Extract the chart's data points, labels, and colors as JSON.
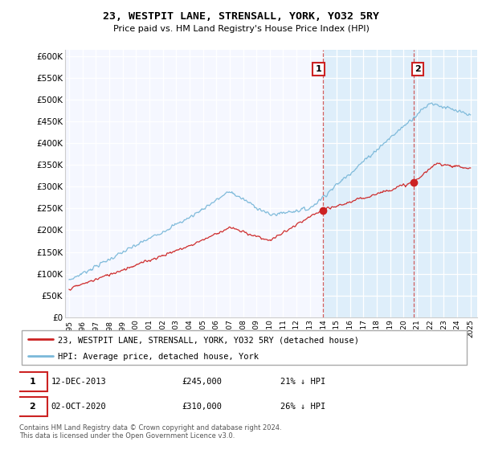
{
  "title": "23, WESTPIT LANE, STRENSALL, YORK, YO32 5RY",
  "subtitle": "Price paid vs. HM Land Registry's House Price Index (HPI)",
  "ylabel_ticks": [
    "£0",
    "£50K",
    "£100K",
    "£150K",
    "£200K",
    "£250K",
    "£300K",
    "£350K",
    "£400K",
    "£450K",
    "£500K",
    "£550K",
    "£600K"
  ],
  "ytick_values": [
    0,
    50000,
    100000,
    150000,
    200000,
    250000,
    300000,
    350000,
    400000,
    450000,
    500000,
    550000,
    600000
  ],
  "ylim": [
    0,
    615000
  ],
  "hpi_color": "#7ab8d9",
  "price_color": "#cc2222",
  "marker1_x": 2013.95,
  "marker1_value": 245000,
  "marker2_x": 2020.75,
  "marker2_value": 310000,
  "legend_entry1": "23, WESTPIT LANE, STRENSALL, YORK, YO32 5RY (detached house)",
  "legend_entry2": "HPI: Average price, detached house, York",
  "note1_num": "1",
  "note1_date": "12-DEC-2013",
  "note1_price": "£245,000",
  "note1_hpi": "21% ↓ HPI",
  "note2_num": "2",
  "note2_date": "02-OCT-2020",
  "note2_price": "£310,000",
  "note2_hpi": "26% ↓ HPI",
  "footer": "Contains HM Land Registry data © Crown copyright and database right 2024.\nThis data is licensed under the Open Government Licence v3.0.",
  "background_color": "#ffffff",
  "plot_bg_color": "#f5f7ff",
  "shade_color": "#d0e8f8",
  "grid_color": "#cccccc"
}
